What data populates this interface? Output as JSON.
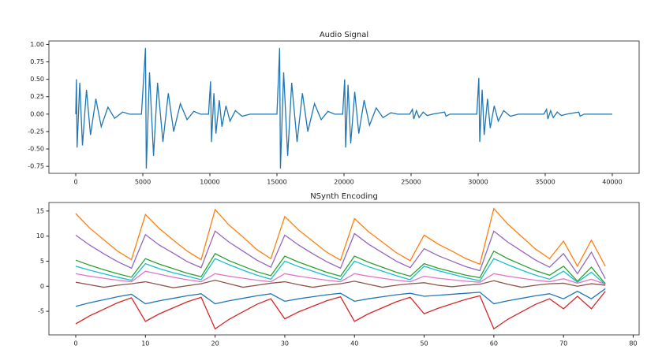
{
  "chart_data": [
    {
      "type": "line",
      "title": "Audio Signal",
      "x": [
        0,
        50,
        100,
        300,
        500,
        800,
        1100,
        1500,
        1900,
        2400,
        2900,
        3500,
        4000,
        4900,
        5200,
        5260,
        5500,
        5800,
        6100,
        6500,
        6900,
        7300,
        7800,
        8300,
        8800,
        9300,
        9900,
        10050,
        10120,
        10300,
        10450,
        10700,
        10900,
        11200,
        11500,
        11900,
        12400,
        13000,
        15000,
        15200,
        15260,
        15500,
        15800,
        16100,
        16500,
        16900,
        17300,
        17800,
        18300,
        18800,
        19300,
        19900,
        20050,
        20120,
        20300,
        20500,
        20800,
        21100,
        21500,
        21900,
        22400,
        22900,
        23500,
        24000,
        24900,
        25100,
        25200,
        25400,
        25600,
        25900,
        26200,
        26600,
        27500,
        27600,
        27900,
        29900,
        30050,
        30120,
        30300,
        30450,
        30700,
        30900,
        31200,
        31500,
        31900,
        32400,
        33000,
        34900,
        35100,
        35200,
        35400,
        35600,
        35900,
        36200,
        36600,
        37500,
        37600,
        37900,
        40000
      ],
      "series": [
        {
          "color": "#1f77b4",
          "values": [
            0,
            0.5,
            -0.48,
            0.45,
            -0.45,
            0.35,
            -0.3,
            0.22,
            -0.18,
            0.1,
            -0.06,
            0.03,
            0,
            0,
            0.95,
            -0.78,
            0.6,
            -0.6,
            0.45,
            -0.4,
            0.3,
            -0.25,
            0.15,
            -0.08,
            0.04,
            0,
            0,
            0.47,
            -0.4,
            0.3,
            -0.28,
            0.2,
            -0.18,
            0.12,
            -0.1,
            0.05,
            -0.03,
            0,
            0,
            0.95,
            -0.78,
            0.6,
            -0.6,
            0.45,
            -0.4,
            0.3,
            -0.25,
            0.15,
            -0.08,
            0.04,
            0,
            0,
            0.5,
            -0.48,
            0.42,
            -0.42,
            0.32,
            -0.28,
            0.2,
            -0.16,
            0.09,
            -0.05,
            0.02,
            0,
            0,
            0.07,
            -0.07,
            0.05,
            -0.05,
            0.03,
            -0.02,
            0,
            0.03,
            -0.03,
            0,
            0,
            0.52,
            -0.4,
            0.35,
            -0.3,
            0.22,
            -0.2,
            0.12,
            -0.1,
            0.05,
            -0.03,
            0,
            0,
            0.07,
            -0.07,
            0.05,
            -0.05,
            0.03,
            -0.02,
            0,
            0.03,
            -0.03,
            0,
            0
          ]
        }
      ],
      "xlim": [
        -2000,
        42000
      ],
      "xticks": [
        0,
        5000,
        10000,
        15000,
        20000,
        25000,
        30000,
        35000,
        40000
      ],
      "ylim": [
        -0.85,
        1.05
      ],
      "yticks": [
        {
          "value": -0.75,
          "label": "-0.75"
        },
        {
          "value": -0.5,
          "label": "-0.50"
        },
        {
          "value": -0.25,
          "label": "-0.25"
        },
        {
          "value": 0,
          "label": "0.00"
        },
        {
          "value": 0.25,
          "label": "0.25"
        },
        {
          "value": 0.5,
          "label": "0.50"
        },
        {
          "value": 0.75,
          "label": "0.75"
        },
        {
          "value": 1,
          "label": "1.00"
        }
      ]
    },
    {
      "type": "line",
      "title": "NSynth Encoding",
      "x": [
        0,
        2,
        4,
        6,
        8,
        10,
        12,
        14,
        16,
        18,
        20,
        22,
        24,
        26,
        28,
        30,
        32,
        34,
        36,
        38,
        40,
        42,
        44,
        46,
        48,
        50,
        52,
        54,
        56,
        58,
        60,
        62,
        64,
        66,
        68,
        70,
        72,
        74,
        76
      ],
      "series": [
        {
          "color": "#ff7f0e",
          "values": [
            14.5,
            11.6,
            9.3,
            7.0,
            5.3,
            14.3,
            11.5,
            9.2,
            7.0,
            5.3,
            15.3,
            12.2,
            9.8,
            7.3,
            5.5,
            13.9,
            11.2,
            9.0,
            6.8,
            5.2,
            13.5,
            10.9,
            8.8,
            6.7,
            5.1,
            10.2,
            8.4,
            7.0,
            5.5,
            4.4,
            15.5,
            12.4,
            9.9,
            7.4,
            5.5,
            9,
            4,
            9.2,
            4
          ]
        },
        {
          "color": "#9467bd",
          "values": [
            10.2,
            8.2,
            6.5,
            4.9,
            3.6,
            10.3,
            8.2,
            6.6,
            4.9,
            3.7,
            11,
            8.8,
            7,
            5.2,
            3.8,
            10.2,
            8.2,
            6.5,
            4.9,
            3.6,
            10.5,
            8.4,
            6.7,
            5,
            3.7,
            7.5,
            6.1,
            5,
            3.9,
            3.1,
            11,
            8.8,
            7,
            5.2,
            3.8,
            6.5,
            2.5,
            6.8,
            1.5
          ]
        },
        {
          "color": "#2ca02c",
          "values": [
            5.2,
            4.2,
            3.3,
            2.5,
            1.8,
            5.5,
            4.4,
            3.5,
            2.6,
            1.9,
            6.5,
            5.1,
            4,
            2.9,
            2.1,
            6,
            4.8,
            3.8,
            2.8,
            2,
            6,
            4.8,
            3.8,
            2.8,
            2,
            4.5,
            3.6,
            2.9,
            2.2,
            1.7,
            7,
            5.5,
            4.3,
            3.1,
            2.2,
            4,
            1,
            3.8,
            0.5
          ]
        },
        {
          "color": "#17becf",
          "values": [
            4,
            3.2,
            2.5,
            1.8,
            1.2,
            4.5,
            3.5,
            2.7,
            2,
            1.3,
            5.5,
            4.3,
            3.2,
            2.2,
            1.4,
            5,
            3.9,
            3,
            2.1,
            1.3,
            5,
            3.9,
            3,
            2.1,
            1.3,
            4,
            3.1,
            2.4,
            1.7,
            1.1,
            5.5,
            4.3,
            3.2,
            2.2,
            1.4,
            3,
            0.8,
            2.8,
            0.3
          ]
        },
        {
          "color": "#e377c2",
          "values": [
            2.5,
            2,
            1.6,
            1.2,
            0.9,
            3,
            2.4,
            1.8,
            1.3,
            0.9,
            2.5,
            2,
            1.6,
            1.2,
            0.9,
            2.5,
            2,
            1.6,
            1.2,
            0.9,
            2.5,
            2,
            1.6,
            1.2,
            0.9,
            2,
            1.6,
            1.3,
            1,
            0.8,
            2.5,
            2,
            1.6,
            1.2,
            0.9,
            1.5,
            0.6,
            1.4,
            0.4
          ]
        },
        {
          "color": "#8c564b",
          "values": [
            0.8,
            0.3,
            -0.2,
            0.2,
            0.5,
            0.9,
            0.3,
            -0.3,
            0.1,
            0.5,
            1.2,
            0.5,
            -0.2,
            0.2,
            0.6,
            0.9,
            0.3,
            -0.2,
            0.2,
            0.5,
            1,
            0.4,
            -0.2,
            0.2,
            0.5,
            0.7,
            0.2,
            -0.1,
            0.2,
            0.4,
            1.1,
            0.4,
            -0.2,
            0.2,
            0.5,
            0.6,
            0,
            0.5,
            0.2
          ]
        },
        {
          "color": "#1f77b4",
          "values": [
            -4,
            -3.3,
            -2.7,
            -2.1,
            -1.6,
            -3.5,
            -2.9,
            -2.4,
            -1.9,
            -1.5,
            -3.5,
            -2.9,
            -2.4,
            -1.9,
            -1.5,
            -3,
            -2.5,
            -2.1,
            -1.7,
            -1.4,
            -3,
            -2.5,
            -2.1,
            -1.7,
            -1.4,
            -2,
            -1.8,
            -1.6,
            -1.4,
            -1.2,
            -3.5,
            -2.9,
            -2.4,
            -1.9,
            -1.5,
            -2.5,
            -1,
            -2.5,
            -0.5
          ]
        },
        {
          "color": "#d62728",
          "values": [
            -7.5,
            -5.9,
            -4.6,
            -3.3,
            -2.3,
            -7,
            -5.5,
            -4.3,
            -3.1,
            -2.2,
            -8.5,
            -6.6,
            -5.1,
            -3.6,
            -2.5,
            -6.5,
            -5.1,
            -4,
            -2.9,
            -2.1,
            -7,
            -5.5,
            -4.3,
            -3.1,
            -2.2,
            -5.5,
            -4.4,
            -3.5,
            -2.6,
            -1.9,
            -8.5,
            -6.6,
            -5.1,
            -3.6,
            -2.5,
            -4.5,
            -2,
            -4.5,
            -1
          ]
        }
      ],
      "xlim": [
        -3.85,
        80.85
      ],
      "xticks": [
        0,
        10,
        20,
        30,
        40,
        50,
        60,
        70,
        80
      ],
      "ylim": [
        -9.7,
        16.7
      ],
      "yticks": [
        -5,
        0,
        5,
        10,
        15
      ]
    }
  ]
}
